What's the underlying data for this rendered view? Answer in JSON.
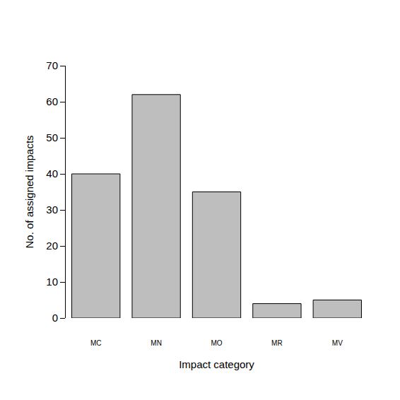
{
  "chart_data": {
    "type": "bar",
    "x_label": "Impact category",
    "y_label": "No. of assigned impacts",
    "categories": [
      "MC",
      "MN",
      "MO",
      "MR",
      "MV"
    ],
    "values": [
      40,
      62,
      35,
      4,
      5
    ],
    "color": "#bebebe",
    "ylim": [
      0,
      70
    ],
    "yticks": [
      0,
      10,
      20,
      30,
      40,
      50,
      60,
      70
    ],
    "grid": false
  }
}
